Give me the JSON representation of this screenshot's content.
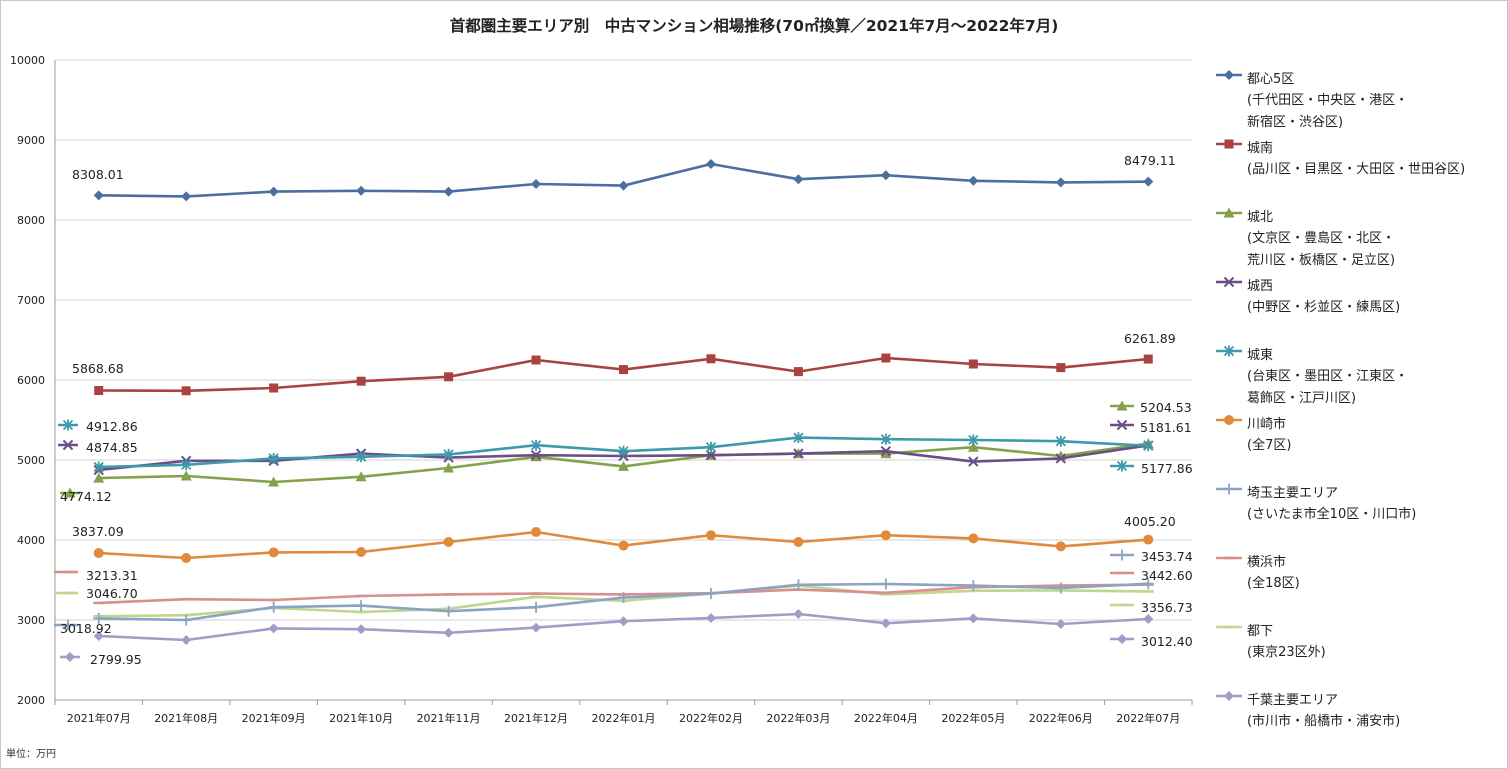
{
  "chart_data": {
    "type": "line",
    "title": "首都圏主要エリア別　中古マンション相場推移(70㎡換算／2021年7月～2022年7月)",
    "unit_note": "単位：万円",
    "xlabel": "",
    "ylabel": "",
    "ylim": [
      2000,
      10000
    ],
    "yticks": [
      "2000",
      "3000",
      "4000",
      "5000",
      "6000",
      "7000",
      "8000",
      "9000",
      "10000"
    ],
    "grid": true,
    "legend_position": "right",
    "categories": [
      "2021年07月",
      "2021年08月",
      "2021年09月",
      "2021年10月",
      "2021年11月",
      "2021年12月",
      "2022年01月",
      "2022年02月",
      "2022年03月",
      "2022年04月",
      "2022年05月",
      "2022年06月",
      "2022年07月"
    ],
    "series": [
      {
        "name": "都心5区",
        "desc": [
          "(千代田区・中央区・港区・",
          "新宿区・渋谷区)"
        ],
        "color": "#4A6FA0",
        "marker": "diamond",
        "values": [
          8308.01,
          8295,
          8355,
          8365,
          8355,
          8450,
          8430,
          8700,
          8510,
          8560,
          8490,
          8470,
          8479.11
        ],
        "start_label": "8308.01",
        "end_label": "8479.11"
      },
      {
        "name": "城南",
        "desc": [
          "(品川区・目黒区・大田区・世田谷区)"
        ],
        "color": "#A94342",
        "marker": "square",
        "values": [
          5868.68,
          5865,
          5900,
          5985,
          6040,
          6250,
          6130,
          6265,
          6105,
          6275,
          6200,
          6155,
          6261.89
        ],
        "start_label": "5868.68",
        "end_label": "6261.89"
      },
      {
        "name": "城北",
        "desc": [
          "(文京区・豊島区・北区・",
          "荒川区・板橋区・足立区)"
        ],
        "color": "#83A24A",
        "marker": "triangle",
        "values": [
          4774.12,
          4800,
          4725,
          4790,
          4900,
          5040,
          4920,
          5060,
          5080,
          5080,
          5160,
          5050,
          5204.53
        ],
        "start_label": "4774.12",
        "end_label": "5204.53"
      },
      {
        "name": "城西",
        "desc": [
          "(中野区・杉並区・練馬区)"
        ],
        "color": "#6B4E86",
        "marker": "x",
        "values": [
          4874.85,
          4990,
          4990,
          5080,
          5030,
          5060,
          5050,
          5060,
          5080,
          5110,
          4980,
          5020,
          5181.61
        ],
        "start_label": "4874.85",
        "end_label": "5181.61"
      },
      {
        "name": "城東",
        "desc": [
          "(台東区・墨田区・江東区・",
          "葛飾区・江戸川区)"
        ],
        "color": "#3D9AAA",
        "marker": "star",
        "values": [
          4912.86,
          4940,
          5020,
          5040,
          5070,
          5185,
          5110,
          5160,
          5280,
          5260,
          5250,
          5235,
          5177.86
        ],
        "start_label": "4912.86",
        "end_label": "5177.86"
      },
      {
        "name": "川崎市",
        "desc": [
          "(全7区)"
        ],
        "color": "#E08A3A",
        "marker": "circle",
        "values": [
          3837.09,
          3775,
          3845,
          3850,
          3975,
          4100,
          3930,
          4060,
          3975,
          4060,
          4020,
          3920,
          4005.2
        ],
        "start_label": "3837.09",
        "end_label": "4005.20"
      },
      {
        "name": "埼玉主要エリア",
        "desc": [
          "(さいたま市全10区・川口市)"
        ],
        "color": "#8CA3C4",
        "marker": "plus",
        "values": [
          3018.92,
          3000,
          3160,
          3180,
          3110,
          3160,
          3280,
          3330,
          3440,
          3450,
          3430,
          3400,
          3453.74
        ],
        "start_label": "3018.92",
        "end_label": "3453.74"
      },
      {
        "name": "横浜市",
        "desc": [
          "(全18区)"
        ],
        "color": "#D98F8D",
        "marker": "dash",
        "values": [
          3213.31,
          3260,
          3250,
          3300,
          3320,
          3330,
          3320,
          3335,
          3380,
          3340,
          3410,
          3430,
          3442.6
        ],
        "start_label": "3213.31",
        "end_label": "3442.60"
      },
      {
        "name": "都下",
        "desc": [
          "(東京23区外)"
        ],
        "color": "#BDD78E",
        "marker": "dash",
        "values": [
          3046.7,
          3060,
          3150,
          3100,
          3140,
          3290,
          3240,
          3330,
          3430,
          3320,
          3365,
          3370,
          3356.73
        ],
        "start_label": "3046.70",
        "end_label": "3356.73"
      },
      {
        "name": "千葉主要エリア",
        "desc": [
          "(市川市・船橋市・浦安市)"
        ],
        "color": "#A89AC6",
        "marker": "diamond",
        "values": [
          2799.95,
          2750,
          2895,
          2885,
          2840,
          2905,
          2985,
          3025,
          3075,
          2960,
          3020,
          2950,
          3012.4
        ],
        "start_label": "2799.95",
        "end_label": "3012.40"
      }
    ]
  }
}
